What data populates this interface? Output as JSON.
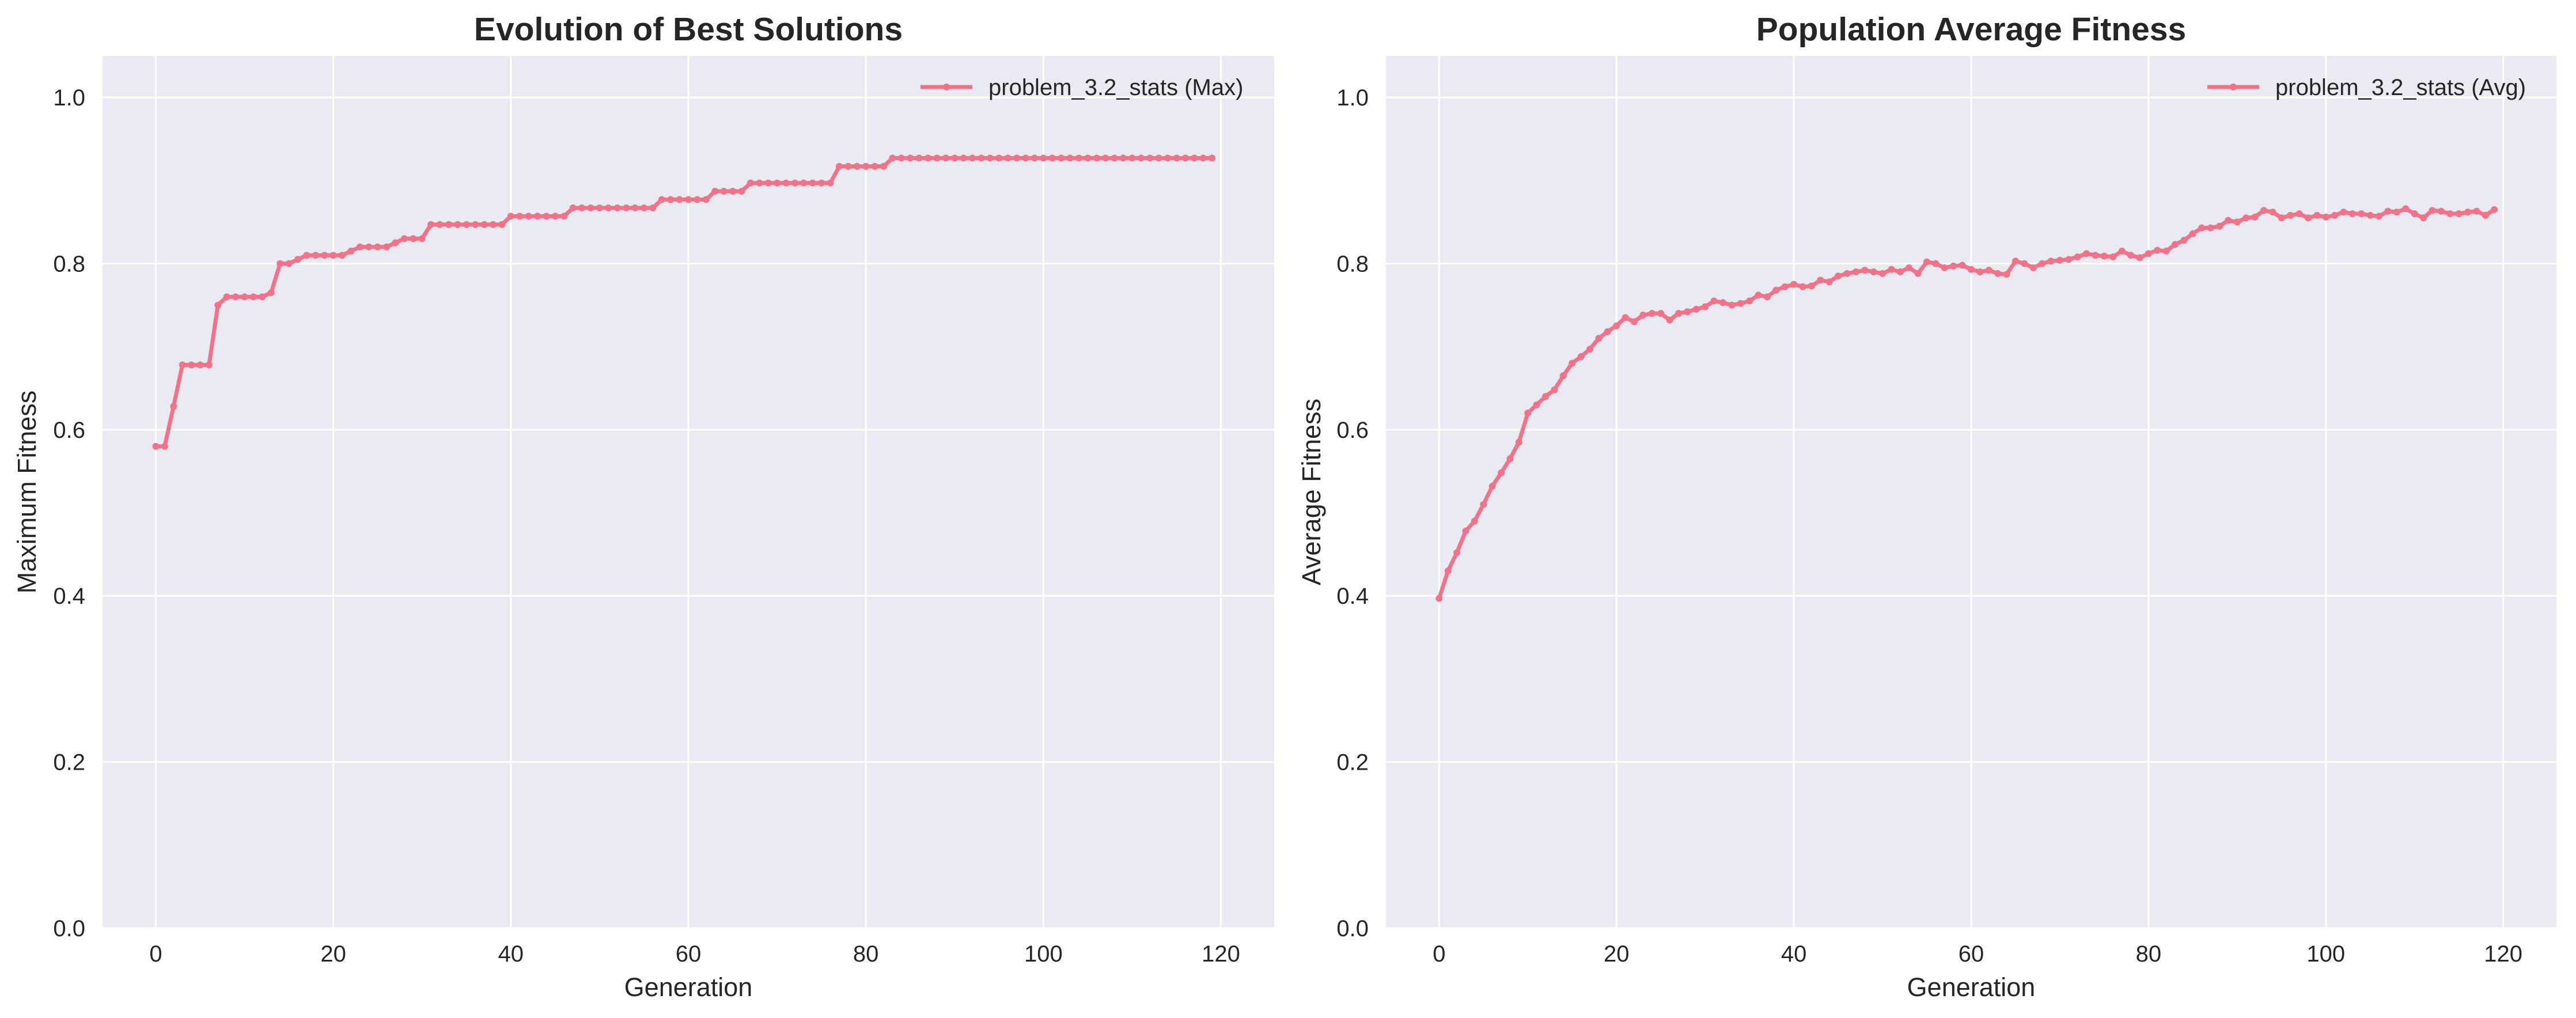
{
  "colors": {
    "background": "#eaeaf2",
    "grid": "#ffffff",
    "series": "#f0738a",
    "text": "#262626"
  },
  "chart_data": [
    {
      "type": "line",
      "title": "Evolution of Best Solutions",
      "xlabel": "Generation",
      "ylabel": "Maximum Fitness",
      "xlim": [
        -6,
        126
      ],
      "ylim": [
        0.0,
        1.05
      ],
      "xticks": [
        0,
        20,
        40,
        60,
        80,
        100,
        120
      ],
      "yticks": [
        0.0,
        0.2,
        0.4,
        0.6,
        0.8,
        1.0
      ],
      "xtick_labels": [
        "0",
        "20",
        "40",
        "60",
        "80",
        "100",
        "120"
      ],
      "ytick_labels": [
        "0.0",
        "0.2",
        "0.4",
        "0.6",
        "0.8",
        "1.0"
      ],
      "legend_position": "top-right",
      "series": [
        {
          "name": "problem_3.2_stats (Max)",
          "x_start": 0,
          "values": [
            0.58,
            0.58,
            0.628,
            0.678,
            0.678,
            0.678,
            0.678,
            0.75,
            0.76,
            0.76,
            0.76,
            0.76,
            0.76,
            0.765,
            0.8,
            0.8,
            0.805,
            0.81,
            0.81,
            0.81,
            0.81,
            0.81,
            0.815,
            0.82,
            0.82,
            0.82,
            0.82,
            0.825,
            0.83,
            0.83,
            0.83,
            0.847,
            0.847,
            0.847,
            0.847,
            0.847,
            0.847,
            0.847,
            0.847,
            0.847,
            0.857,
            0.857,
            0.857,
            0.857,
            0.857,
            0.857,
            0.857,
            0.867,
            0.867,
            0.867,
            0.867,
            0.867,
            0.867,
            0.867,
            0.867,
            0.867,
            0.867,
            0.877,
            0.877,
            0.877,
            0.877,
            0.877,
            0.877,
            0.887,
            0.887,
            0.887,
            0.887,
            0.897,
            0.897,
            0.897,
            0.897,
            0.897,
            0.897,
            0.897,
            0.897,
            0.897,
            0.897,
            0.917,
            0.917,
            0.917,
            0.917,
            0.917,
            0.917,
            0.927,
            0.927,
            0.927,
            0.927,
            0.927,
            0.927,
            0.927,
            0.927,
            0.927,
            0.927,
            0.927,
            0.927,
            0.927,
            0.927,
            0.927,
            0.927,
            0.927,
            0.927,
            0.927,
            0.927,
            0.927,
            0.927,
            0.927,
            0.927,
            0.927,
            0.927,
            0.927,
            0.927,
            0.927,
            0.927,
            0.927,
            0.927,
            0.927,
            0.927,
            0.927,
            0.927,
            0.927
          ]
        }
      ]
    },
    {
      "type": "line",
      "title": "Population Average Fitness",
      "xlabel": "Generation",
      "ylabel": "Average Fitness",
      "xlim": [
        -6,
        126
      ],
      "ylim": [
        0.0,
        1.05
      ],
      "xticks": [
        0,
        20,
        40,
        60,
        80,
        100,
        120
      ],
      "yticks": [
        0.0,
        0.2,
        0.4,
        0.6,
        0.8,
        1.0
      ],
      "xtick_labels": [
        "0",
        "20",
        "40",
        "60",
        "80",
        "100",
        "120"
      ],
      "ytick_labels": [
        "0.0",
        "0.2",
        "0.4",
        "0.6",
        "0.8",
        "1.0"
      ],
      "legend_position": "top-right",
      "series": [
        {
          "name": "problem_3.2_stats (Avg)",
          "x_start": 0,
          "values": [
            0.397,
            0.43,
            0.452,
            0.478,
            0.49,
            0.51,
            0.532,
            0.548,
            0.565,
            0.585,
            0.62,
            0.63,
            0.64,
            0.648,
            0.665,
            0.68,
            0.688,
            0.697,
            0.71,
            0.718,
            0.725,
            0.735,
            0.73,
            0.738,
            0.74,
            0.74,
            0.732,
            0.74,
            0.742,
            0.745,
            0.748,
            0.755,
            0.753,
            0.75,
            0.752,
            0.755,
            0.762,
            0.76,
            0.768,
            0.772,
            0.775,
            0.772,
            0.773,
            0.78,
            0.778,
            0.785,
            0.788,
            0.79,
            0.792,
            0.79,
            0.788,
            0.793,
            0.79,
            0.795,
            0.788,
            0.802,
            0.8,
            0.795,
            0.797,
            0.798,
            0.793,
            0.79,
            0.792,
            0.788,
            0.787,
            0.803,
            0.8,
            0.795,
            0.8,
            0.803,
            0.804,
            0.805,
            0.808,
            0.812,
            0.81,
            0.809,
            0.808,
            0.815,
            0.81,
            0.807,
            0.812,
            0.816,
            0.815,
            0.823,
            0.828,
            0.836,
            0.843,
            0.843,
            0.845,
            0.852,
            0.85,
            0.855,
            0.856,
            0.864,
            0.862,
            0.855,
            0.858,
            0.86,
            0.855,
            0.858,
            0.856,
            0.858,
            0.862,
            0.86,
            0.86,
            0.858,
            0.857,
            0.863,
            0.862,
            0.866,
            0.86,
            0.855,
            0.864,
            0.863,
            0.86,
            0.86,
            0.862,
            0.863,
            0.858,
            0.865
          ]
        }
      ]
    }
  ]
}
